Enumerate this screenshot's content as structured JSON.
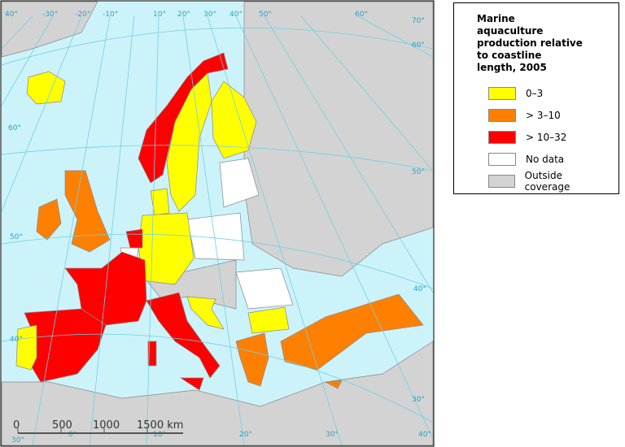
{
  "legend": {
    "title": "Marine aquaculture production relative to coastline length, 2005",
    "items": [
      {
        "label": "0–3",
        "color": "#ffff00"
      },
      {
        "label": "> 3–10",
        "color": "#ff8000"
      },
      {
        "label": "> 10–32",
        "color": "#ff0000"
      },
      {
        "label": "No data",
        "color": "#ffffff"
      },
      {
        "label": "Outside coverage",
        "color": "#d3d3d3"
      }
    ]
  },
  "graticule": {
    "top": [
      "40°",
      "-30°",
      "-20°",
      "-10°",
      "10°",
      "20°",
      "30°",
      "40°",
      "50°",
      "60°",
      "70°"
    ],
    "left": [
      "60°",
      "50°",
      "40°"
    ],
    "right": [
      "60°",
      "50°",
      "40°",
      "30°"
    ],
    "bottom": [
      "30°",
      "0°",
      "10°",
      "20°",
      "30°",
      "40°"
    ]
  },
  "scale_bar": {
    "labels": [
      "0",
      "500",
      "1000",
      "1500 km"
    ]
  }
}
